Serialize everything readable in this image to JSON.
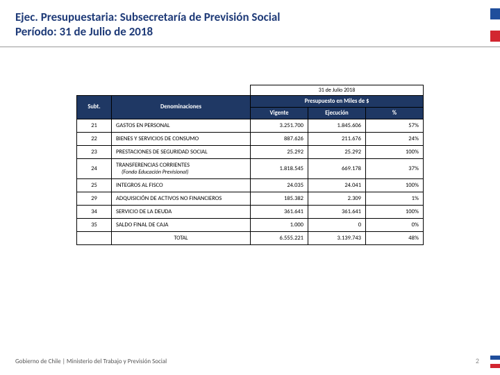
{
  "title_line1": "Ejec. Presupuestaria: Subsecretaría de Previsión Social",
  "title_line2": "Período: 31 de Julio de 2018",
  "flag_colors": [
    "#1f4e9c",
    "#ffffff",
    "#d22630"
  ],
  "table": {
    "period_label": "31 de Julio 2018",
    "col_subt": "Subt.",
    "col_denom": "Denominaciones",
    "col_group": "Presupuesto en Miles de $",
    "col_vigente": "Vigente",
    "col_ejec": "Ejecución",
    "col_pct": "%",
    "rows": [
      {
        "subt": "21",
        "denom": "GASTOS EN PERSONAL",
        "sub": "",
        "vigente": "3.251.700",
        "ejec": "1.845.606",
        "pct": "57%"
      },
      {
        "subt": "22",
        "denom": "BIENES Y SERVICIOS DE CONSUMO",
        "sub": "",
        "vigente": "887.626",
        "ejec": "211.676",
        "pct": "24%"
      },
      {
        "subt": "23",
        "denom": "PRESTACIONES DE SEGURIDAD SOCIAL",
        "sub": "",
        "vigente": "25.292",
        "ejec": "25.292",
        "pct": "100%"
      },
      {
        "subt": "24",
        "denom": "TRANSFERENCIAS CORRIENTES",
        "sub": "(Fondo Educación Previsional)",
        "vigente": "1.818.545",
        "ejec": "669.178",
        "pct": "37%"
      },
      {
        "subt": "25",
        "denom": "INTEGROS AL FISCO",
        "sub": "",
        "vigente": "24.035",
        "ejec": "24.041",
        "pct": "100%"
      },
      {
        "subt": "29",
        "denom": "ADQUISICIÓN DE ACTIVOS NO FINANCIEROS",
        "sub": "",
        "vigente": "185.382",
        "ejec": "2.309",
        "pct": "1%"
      },
      {
        "subt": "34",
        "denom": "SERVICIO DE LA DEUDA",
        "sub": "",
        "vigente": "361.641",
        "ejec": "361.641",
        "pct": "100%"
      },
      {
        "subt": "35",
        "denom": "SALDO FINAL DE CAJA",
        "sub": "",
        "vigente": "1.000",
        "ejec": "0",
        "pct": "0%"
      }
    ],
    "total_label": "TOTAL",
    "total_vigente": "6.555.221",
    "total_ejec": "3.139.743",
    "total_pct": "48%"
  },
  "footer": "Gobierno de Chile | Ministerio del Trabajo y Previsión Social",
  "page_number": "2"
}
